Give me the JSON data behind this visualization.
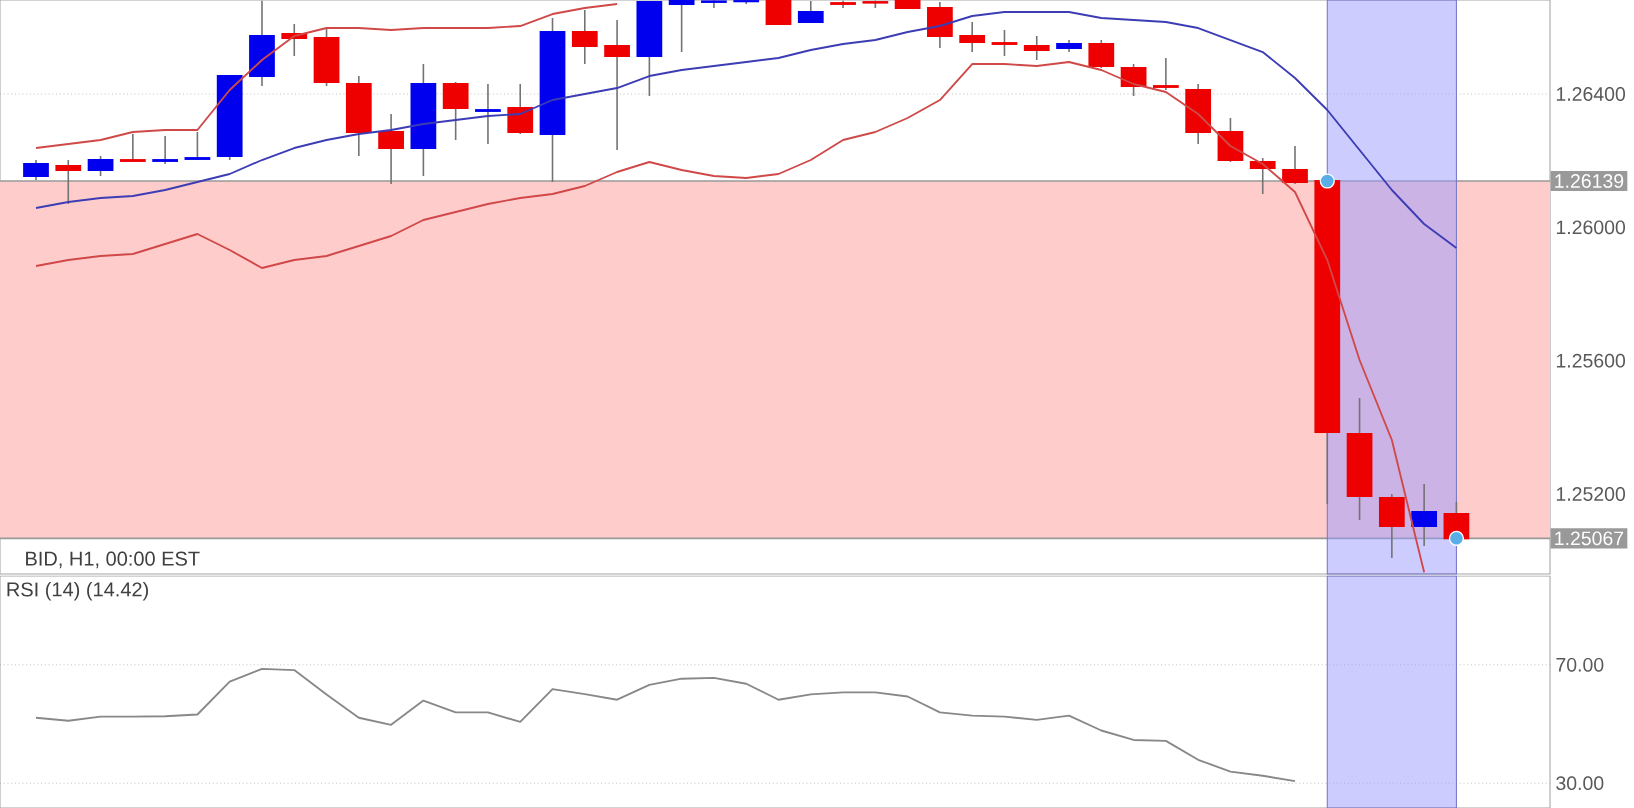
{
  "chart_data": [
    {
      "type": "candlestick",
      "annotations": [
        "BID, H1, 00:00 EST"
      ],
      "categories": [
        null,
        null,
        null,
        null,
        null,
        null,
        null,
        null,
        null,
        null,
        null,
        null,
        null,
        null,
        null,
        null,
        null,
        null,
        null,
        null,
        null,
        null,
        null,
        null,
        null,
        null,
        null,
        null,
        null,
        null,
        null,
        null,
        null,
        null,
        null,
        null,
        null,
        null,
        null,
        null,
        null,
        null,
        null,
        null,
        null
      ],
      "ohlc": [
        [
          1.26154,
          1.26202,
          1.26142,
          1.2619
        ],
        [
          1.26184,
          1.26202,
          1.2607,
          1.26172
        ],
        [
          1.26172,
          1.26214,
          1.26154,
          1.26202
        ],
        [
          1.26202,
          1.2628,
          1.26196,
          1.26199
        ],
        [
          1.26199,
          1.26274,
          1.2619,
          1.26202
        ],
        [
          1.26205,
          1.26286,
          1.26202,
          1.26208
        ],
        [
          1.26214,
          1.26454,
          1.26202,
          1.26454
        ],
        [
          1.26454,
          1.2668,
          1.26424,
          1.26574
        ],
        [
          1.2658,
          1.2661,
          1.26514,
          1.26568
        ],
        [
          1.26568,
          1.26598,
          1.26424,
          1.26436
        ],
        [
          1.2643,
          1.26454,
          1.26214,
          1.26286
        ],
        [
          1.26286,
          1.2634,
          1.2613,
          1.26238
        ],
        [
          1.26238,
          1.2649,
          1.26154,
          1.2643
        ],
        [
          1.2643,
          1.26436,
          1.26262,
          1.26358
        ],
        [
          1.26349,
          1.2643,
          1.2625,
          1.26352
        ],
        [
          1.26358,
          1.2643,
          1.2628,
          1.26286
        ],
        [
          1.2628,
          1.26628,
          1.26136,
          1.26586
        ],
        [
          1.26586,
          1.26652,
          1.2649,
          1.26544
        ],
        [
          1.26544,
          1.26622,
          1.26232,
          1.26514
        ],
        [
          1.26514,
          1.26679,
          1.26394,
          1.26676
        ],
        [
          1.2667,
          1.26681,
          1.26526,
          1.26679
        ],
        [
          1.26676,
          1.26681,
          1.26658,
          1.26678
        ],
        [
          1.26678,
          1.26681,
          1.2667,
          1.26679
        ],
        [
          1.26679,
          1.2668,
          1.2661,
          1.2661
        ],
        [
          1.26616,
          1.26679,
          1.26616,
          1.26646
        ],
        [
          1.26673,
          1.2668,
          1.26658,
          1.2667
        ],
        [
          1.26676,
          1.2668,
          1.26658,
          1.26674
        ],
        [
          1.26679,
          1.2668,
          1.26655,
          1.26658
        ],
        [
          1.26658,
          1.26676,
          1.26538,
          1.26574
        ],
        [
          1.26574,
          1.26616,
          1.26526,
          1.26556
        ],
        [
          1.26553,
          1.26592,
          1.26514,
          1.2655
        ],
        [
          1.26544,
          1.26574,
          1.26502,
          1.26532
        ],
        [
          1.26538,
          1.26562,
          1.26526,
          1.2655
        ],
        [
          1.2655,
          1.26562,
          1.26478,
          1.26484
        ],
        [
          1.26478,
          1.2649,
          1.26394,
          1.26424
        ],
        [
          1.26424,
          1.26508,
          1.26412,
          1.26421
        ],
        [
          1.26412,
          1.2643,
          1.2625,
          1.26286
        ],
        [
          1.26286,
          1.26328,
          1.26196,
          1.26202
        ],
        [
          1.26196,
          1.26208,
          1.261,
          1.26178
        ],
        [
          1.26172,
          1.26244,
          1.2613,
          1.26136
        ],
        [
          1.26139,
          1.26139,
          1.2517,
          1.25386
        ],
        [
          1.2538,
          1.25488,
          1.25122,
          1.25194
        ],
        [
          1.25188,
          1.252,
          1.25008,
          1.25104
        ],
        [
          1.25104,
          1.2523,
          1.25044,
          1.25146
        ],
        [
          1.2514,
          1.25176,
          1.25067,
          1.25067
        ]
      ],
      "colors": [
        "#0000ee",
        "#ee0000",
        "#0000ee",
        "#ee0000",
        "#0000ee",
        "#0000ee",
        "#0000ee",
        "#0000ee",
        "#ee0000",
        "#ee0000",
        "#ee0000",
        "#ee0000",
        "#0000ee",
        "#ee0000",
        "#0000ee",
        "#ee0000",
        "#0000ee",
        "#ee0000",
        "#ee0000",
        "#0000ee",
        "#0000ee",
        "#0000ee",
        "#0000ee",
        "#ee0000",
        "#0000ee",
        "#ee0000",
        "#ee0000",
        "#ee0000",
        "#ee0000",
        "#ee0000",
        "#ee0000",
        "#ee0000",
        "#0000ee",
        "#ee0000",
        "#ee0000",
        "#ee0000",
        "#ee0000",
        "#ee0000",
        "#ee0000",
        "#ee0000",
        "#ee0000",
        "#ee0000",
        "#ee0000",
        "#0000ee",
        "#ee0000"
      ],
      "series": [
        {
          "type": "line",
          "color": "#d04848",
          "values": [
            1.26238,
            1.2625,
            1.26262,
            1.26286,
            1.26292,
            1.26292,
            1.26412,
            1.26502,
            1.26574,
            1.26598,
            1.26598,
            1.26592,
            1.26598,
            1.26598,
            1.26598,
            1.26604,
            1.2664,
            1.26658,
            1.2667,
            null,
            null,
            null,
            null,
            null,
            null,
            null,
            null,
            null,
            null,
            null,
            null,
            null,
            null,
            null,
            null,
            null,
            null,
            null,
            null,
            null,
            null,
            null,
            null,
            null,
            null
          ]
        },
        {
          "type": "line",
          "color": "#3c3cb4",
          "values": [
            1.26058,
            1.26076,
            1.26088,
            1.26094,
            1.26112,
            1.26136,
            1.2616,
            1.26202,
            1.26238,
            1.26262,
            1.2628,
            1.26292,
            1.2631,
            1.26322,
            1.26334,
            1.2634,
            1.26382,
            1.264,
            1.26418,
            1.26454,
            1.26472,
            1.26484,
            1.26496,
            1.26508,
            1.26532,
            1.2655,
            1.26562,
            1.26586,
            1.26604,
            1.26634,
            1.26646,
            1.26646,
            1.26646,
            1.26628,
            1.26622,
            1.26616,
            1.26598,
            1.26562,
            1.26526,
            1.26448,
            1.26352,
            1.26232,
            1.26112,
            1.2601,
            1.25938
          ]
        },
        {
          "type": "line",
          "color": "#d04848",
          "values": [
            1.25884,
            1.25902,
            1.25914,
            1.2592,
            1.2595,
            1.2598,
            1.25932,
            1.25878,
            1.25902,
            1.25914,
            1.25944,
            1.25974,
            1.26022,
            1.26046,
            1.2607,
            1.26088,
            1.261,
            1.26124,
            1.26166,
            1.26196,
            1.26172,
            1.26154,
            1.26148,
            1.2616,
            1.26202,
            1.26262,
            1.26286,
            1.26328,
            1.26382,
            1.2649,
            1.2649,
            1.26484,
            1.26496,
            1.26472,
            1.2643,
            1.26406,
            1.2634,
            1.26244,
            1.2619,
            1.26106,
            1.25902,
            1.25602,
            1.25362,
            1.24965,
            null
          ]
        },
        {
          "type": "scatter",
          "color": "#5aaee8",
          "marker": "circle",
          "values": [
            null,
            null,
            null,
            null,
            null,
            null,
            null,
            null,
            null,
            null,
            null,
            null,
            null,
            null,
            null,
            null,
            null,
            null,
            null,
            null,
            null,
            null,
            null,
            null,
            null,
            null,
            null,
            null,
            null,
            null,
            null,
            null,
            null,
            null,
            null,
            null,
            null,
            null,
            null,
            null,
            1.26139,
            null,
            null,
            null,
            1.25067
          ]
        }
      ],
      "ylim": [
        1.2496,
        1.26682
      ],
      "yticks": [
        {
          "value": 1.252,
          "label": "1.25200"
        },
        {
          "value": 1.256,
          "label": "1.25600"
        },
        {
          "value": 1.26,
          "label": "1.26000"
        },
        {
          "value": 1.264,
          "label": "1.26400"
        }
      ],
      "ref_lines": [
        {
          "axis": "y",
          "value": 1.26139,
          "label": "1.26139",
          "color": "#999999"
        },
        {
          "axis": "y",
          "value": 1.25067,
          "label": "1.25067",
          "color": "#999999"
        }
      ],
      "bands": [
        {
          "axis": "y",
          "from": 1.25067,
          "to": 1.26139,
          "color": "#ffcccc"
        }
      ],
      "grid": "y",
      "tick_labels": "y"
    },
    {
      "type": "line",
      "title": "RSI (14)  (14.42)",
      "categories": [
        null,
        null,
        null,
        null,
        null,
        null,
        null,
        null,
        null,
        null,
        null,
        null,
        null,
        null,
        null,
        null,
        null,
        null,
        null,
        null,
        null,
        null,
        null,
        null,
        null,
        null,
        null,
        null,
        null,
        null,
        null,
        null,
        null,
        null,
        null,
        null,
        null,
        null,
        null,
        null,
        null,
        null,
        null,
        null,
        null
      ],
      "series": [
        {
          "color": "#888888",
          "values": [
            52.1,
            51.1,
            52.5,
            52.5,
            52.6,
            53.2,
            64.3,
            68.6,
            68.2,
            60.0,
            52.1,
            49.7,
            57.9,
            53.9,
            53.9,
            50.7,
            61.8,
            60.1,
            58.2,
            63.2,
            65.3,
            65.6,
            63.6,
            58.2,
            60.0,
            60.7,
            60.7,
            59.3,
            53.9,
            52.8,
            52.5,
            51.4,
            52.8,
            47.8,
            44.6,
            44.3,
            37.9,
            33.9,
            32.5,
            30.7,
            null,
            null,
            null,
            null,
            null
          ]
        }
      ],
      "ylim": [
        21.6,
        100
      ],
      "yticks": [
        {
          "value": 30,
          "label": "30.00"
        },
        {
          "value": 70,
          "label": "70.00"
        }
      ],
      "grid": "y",
      "tick_labels": "y"
    }
  ]
}
